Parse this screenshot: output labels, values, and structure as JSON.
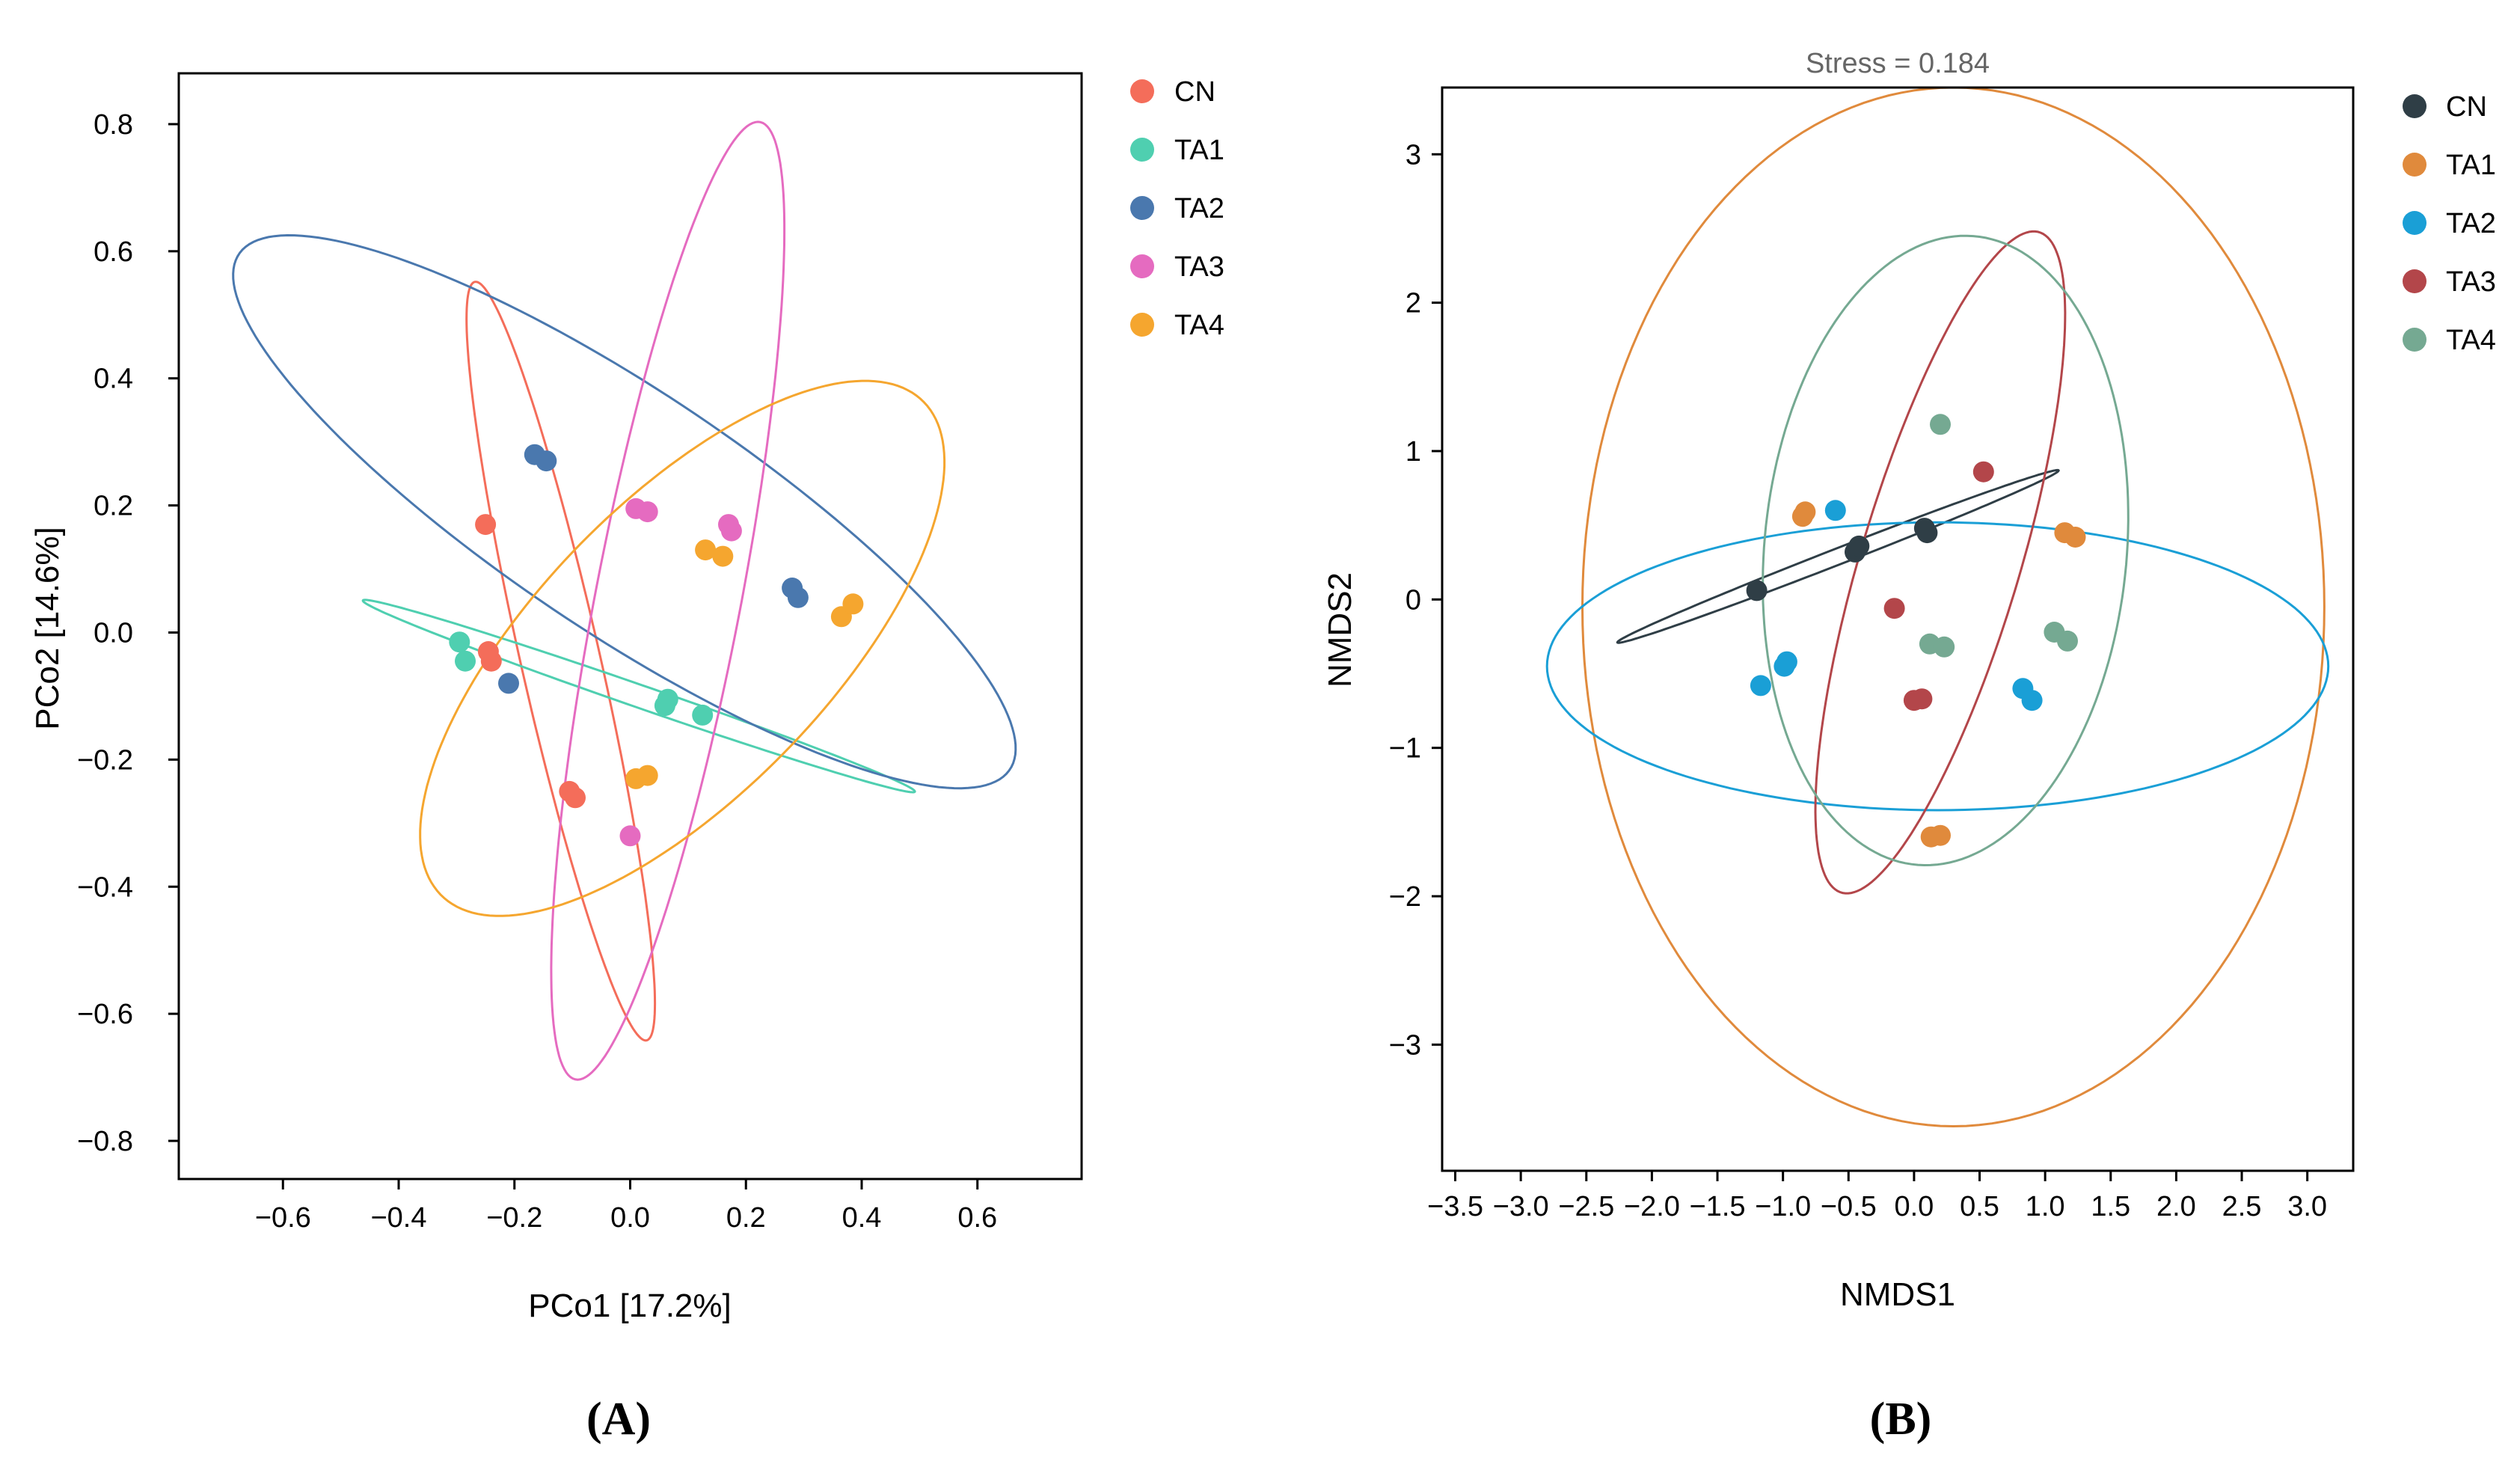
{
  "chart_data": [
    {
      "type": "scatter",
      "panel_label": "(A)",
      "title": "",
      "xlabel": "PCo1 [17.2%]",
      "ylabel": "PCo2 [14.6%]",
      "xlim": [
        -0.78,
        0.78
      ],
      "ylim": [
        -0.86,
        0.88
      ],
      "xticks": [
        -0.6,
        -0.4,
        -0.2,
        0.0,
        0.2,
        0.4,
        0.6
      ],
      "xtick_labels": [
        "−0.6",
        "−0.4",
        "−0.2",
        "0.0",
        "0.2",
        "0.4",
        "0.6"
      ],
      "yticks": [
        0.8,
        0.6,
        0.4,
        0.2,
        0.0,
        -0.2,
        -0.4,
        -0.6,
        -0.8
      ],
      "ytick_labels": [
        "0.8",
        "0.6",
        "0.4",
        "0.2",
        "0.0",
        "−0.2",
        "−0.4",
        "−0.6",
        "−0.8"
      ],
      "grid": false,
      "legend_position": "right",
      "series": [
        {
          "name": "CN",
          "color": "#f46d5a",
          "points": [
            [
              -0.25,
              0.17
            ],
            [
              -0.245,
              -0.03
            ],
            [
              -0.24,
              -0.045
            ],
            [
              -0.105,
              -0.25
            ],
            [
              -0.095,
              -0.26
            ]
          ],
          "ellipse": {
            "cx": -0.12,
            "cy": -0.045,
            "rx": 0.615,
            "ry": 0.068,
            "angle_deg": -76
          }
        },
        {
          "name": "TA1",
          "color": "#4fcfb0",
          "points": [
            [
              -0.295,
              -0.015
            ],
            [
              -0.285,
              -0.045
            ],
            [
              0.065,
              -0.105
            ],
            [
              0.06,
              -0.115
            ],
            [
              0.125,
              -0.13
            ]
          ],
          "ellipse": {
            "cx": 0.015,
            "cy": -0.1,
            "rx": 0.5,
            "ry": 0.018,
            "angle_deg": -17.5
          }
        },
        {
          "name": "TA2",
          "color": "#4a78ae",
          "points": [
            [
              -0.165,
              0.28
            ],
            [
              -0.145,
              0.27
            ],
            [
              -0.21,
              -0.08
            ],
            [
              0.28,
              0.07
            ],
            [
              0.29,
              0.055
            ]
          ],
          "ellipse": {
            "cx": -0.01,
            "cy": 0.19,
            "rx": 0.78,
            "ry": 0.195,
            "angle_deg": -31
          }
        },
        {
          "name": "TA3",
          "color": "#e56bc0",
          "points": [
            [
              0.01,
              0.195
            ],
            [
              0.03,
              0.19
            ],
            [
              0.17,
              0.17
            ],
            [
              0.175,
              0.16
            ],
            [
              0.0,
              -0.32
            ]
          ],
          "ellipse": {
            "cx": 0.065,
            "cy": 0.05,
            "rx": 0.77,
            "ry": 0.125,
            "angle_deg": 78
          }
        },
        {
          "name": "TA4",
          "color": "#f5a62f",
          "points": [
            [
              0.13,
              0.13
            ],
            [
              0.16,
              0.12
            ],
            [
              0.365,
              0.025
            ],
            [
              0.385,
              0.045
            ],
            [
              0.01,
              -0.23
            ],
            [
              0.03,
              -0.225
            ]
          ],
          "ellipse": {
            "cx": 0.09,
            "cy": -0.025,
            "rx": 0.57,
            "ry": 0.24,
            "angle_deg": 42
          }
        }
      ]
    },
    {
      "type": "scatter",
      "panel_label": "(B)",
      "title": "Stress = 0.184",
      "xlabel": "NMDS1",
      "ylabel": "NMDS2",
      "xlim": [
        -3.6,
        3.35
      ],
      "ylim": [
        -3.85,
        3.45
      ],
      "xticks": [
        -3.5,
        -3.0,
        -2.5,
        -2.0,
        -1.5,
        -1.0,
        -0.5,
        0.0,
        0.5,
        1.0,
        1.5,
        2.0,
        2.5,
        3.0
      ],
      "xtick_labels": [
        "−3.5",
        "−3.0",
        "−2.5",
        "−2.0",
        "−1.5",
        "−1.0",
        "−0.5",
        "0.0",
        "0.5",
        "1.0",
        "1.5",
        "2.0",
        "2.5",
        "3.0"
      ],
      "yticks": [
        3,
        2,
        1,
        0,
        -1,
        -2,
        -3
      ],
      "ytick_labels": [
        "3",
        "2",
        "1",
        "0",
        "−1",
        "−2",
        "−3"
      ],
      "grid": false,
      "legend_position": "right",
      "series": [
        {
          "name": "CN",
          "color": "#2f3e46",
          "points": [
            [
              -1.2,
              0.06
            ],
            [
              -0.45,
              0.32
            ],
            [
              -0.42,
              0.36
            ],
            [
              0.08,
              0.48
            ],
            [
              0.1,
              0.45
            ]
          ],
          "ellipse": {
            "cx": -0.58,
            "cy": 0.29,
            "rx": 1.78,
            "ry": 0.055,
            "angle_deg": 19
          }
        },
        {
          "name": "TA1",
          "color": "#e08a3c",
          "points": [
            [
              -0.85,
              0.56
            ],
            [
              -0.83,
              0.59
            ],
            [
              1.15,
              0.45
            ],
            [
              1.23,
              0.42
            ],
            [
              0.13,
              -1.6
            ],
            [
              0.2,
              -1.59
            ]
          ],
          "ellipse": {
            "cx": 0.3,
            "cy": -0.05,
            "rx": 2.83,
            "ry": 3.5,
            "angle_deg": 0
          }
        },
        {
          "name": "TA2",
          "color": "#1a9fd6",
          "points": [
            [
              -0.6,
              0.6
            ],
            [
              -0.97,
              -0.42
            ],
            [
              -0.99,
              -0.45
            ],
            [
              -1.17,
              -0.58
            ],
            [
              0.83,
              -0.6
            ],
            [
              0.9,
              -0.68
            ]
          ],
          "ellipse": {
            "cx": 0.18,
            "cy": -0.45,
            "rx": 2.98,
            "ry": 0.97,
            "angle_deg": 0
          }
        },
        {
          "name": "TA3",
          "color": "#b3464a",
          "points": [
            [
              0.53,
              0.86
            ],
            [
              -0.15,
              -0.06
            ],
            [
              0.0,
              -0.68
            ],
            [
              0.06,
              -0.67
            ]
          ],
          "ellipse": {
            "cx": 0.2,
            "cy": 0.25,
            "rx": 2.35,
            "ry": 0.6,
            "angle_deg": 71
          }
        },
        {
          "name": "TA4",
          "color": "#75a992",
          "points": [
            [
              0.2,
              1.18
            ],
            [
              1.07,
              -0.22
            ],
            [
              1.17,
              -0.28
            ],
            [
              0.12,
              -0.3
            ],
            [
              0.23,
              -0.32
            ]
          ],
          "ellipse": {
            "cx": 0.24,
            "cy": 0.33,
            "rx": 2.13,
            "ry": 1.38,
            "angle_deg": 83
          }
        }
      ]
    }
  ]
}
